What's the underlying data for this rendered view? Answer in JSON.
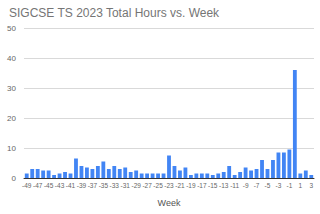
{
  "chart_data": {
    "type": "bar",
    "title": "SIGCSE TS 2023 Total Hours vs. Week",
    "x_label": "Week",
    "categories": [
      -49,
      null,
      -47,
      null,
      -45,
      null,
      -43,
      null,
      -41,
      null,
      -39,
      null,
      -37,
      null,
      -35,
      null,
      -33,
      null,
      -31,
      null,
      -29,
      null,
      -27,
      null,
      -25,
      null,
      -23,
      null,
      -21,
      null,
      -19,
      null,
      -17,
      null,
      -15,
      null,
      -13,
      null,
      -11,
      null,
      -9,
      null,
      -7,
      null,
      -5,
      null,
      -3,
      null,
      -1,
      null,
      1,
      null,
      3
    ],
    "values": [
      1.5,
      3,
      3,
      2.5,
      2.5,
      1,
      1.5,
      2,
      1.5,
      6.5,
      4,
      3.5,
      3,
      4,
      5.5,
      3,
      4,
      3,
      3.5,
      2,
      2.5,
      1.5,
      1.5,
      1.5,
      1.5,
      1.5,
      7.5,
      4,
      2.5,
      3.5,
      1,
      1.5,
      1.5,
      1.5,
      1,
      1.5,
      2,
      4,
      1,
      2,
      3.5,
      2.5,
      3,
      6,
      3,
      6,
      8.5,
      8.5,
      9.5,
      36,
      1.5,
      2.5,
      1
    ],
    "color": "#4285f4",
    "ylim": [
      0,
      50
    ],
    "yticks": [
      0,
      10,
      20,
      30,
      40,
      50
    ],
    "grid": true
  }
}
